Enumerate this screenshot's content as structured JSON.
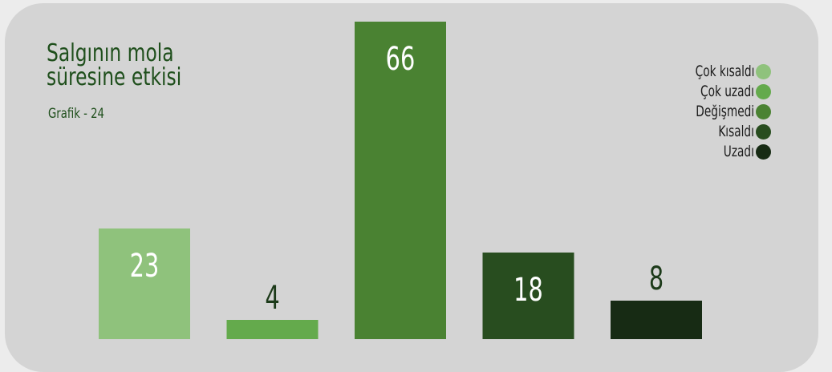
{
  "chart_data": {
    "type": "bar",
    "title": "Salgının mola süresine etkisi",
    "subtitle": "Grafik - 24",
    "categories": [
      "Çok kısaldı",
      "Çok uzadı",
      "Değişmedi",
      "Kısaldı",
      "Uzadı"
    ],
    "values": [
      23,
      4,
      66,
      18,
      8
    ],
    "colors": [
      "#8fc27c",
      "#64aa4c",
      "#4a8232",
      "#284d1f",
      "#172b14"
    ],
    "ylim": [
      0,
      66
    ],
    "legend_position": "top-right",
    "grid": false
  }
}
